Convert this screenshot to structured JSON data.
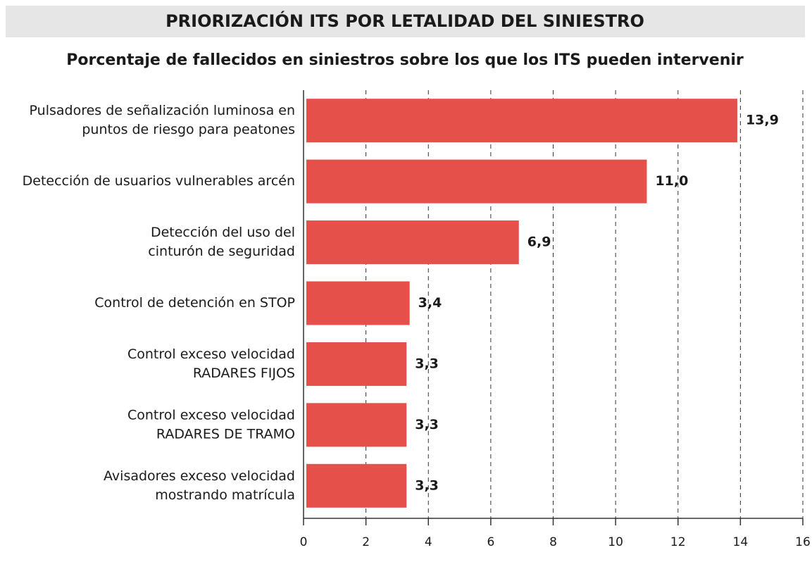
{
  "chart_data": {
    "type": "barh",
    "title": "PRIORIZACIÓN ITS POR LETALIDAD DEL SINIESTRO",
    "subtitle": "Porcentaje de fallecidos en siniestros sobre los que los ITS pueden intervenir",
    "categories": [
      [
        "Pulsadores de señalización luminosa en",
        "puntos de riesgo para peatones"
      ],
      [
        "Detección de usuarios vulnerables arcén"
      ],
      [
        "Detección del uso del",
        "cinturón de seguridad"
      ],
      [
        "Control de detención en STOP"
      ],
      [
        "Control exceso velocidad",
        "RADARES FIJOS"
      ],
      [
        "Control exceso velocidad",
        "RADARES DE TRAMO"
      ],
      [
        "Avisadores exceso velocidad",
        "mostrando matrícula"
      ]
    ],
    "values": [
      13.9,
      11.0,
      6.9,
      3.4,
      3.3,
      3.3,
      3.3
    ],
    "value_labels": [
      "13,9",
      "11,0",
      "6,9",
      "3,4",
      "3,3",
      "3,3",
      "3,3"
    ],
    "color": "#e5504a",
    "xlim": [
      0,
      16
    ],
    "xticks": [
      0,
      2,
      4,
      6,
      8,
      10,
      12,
      14,
      16
    ],
    "grid": true
  }
}
